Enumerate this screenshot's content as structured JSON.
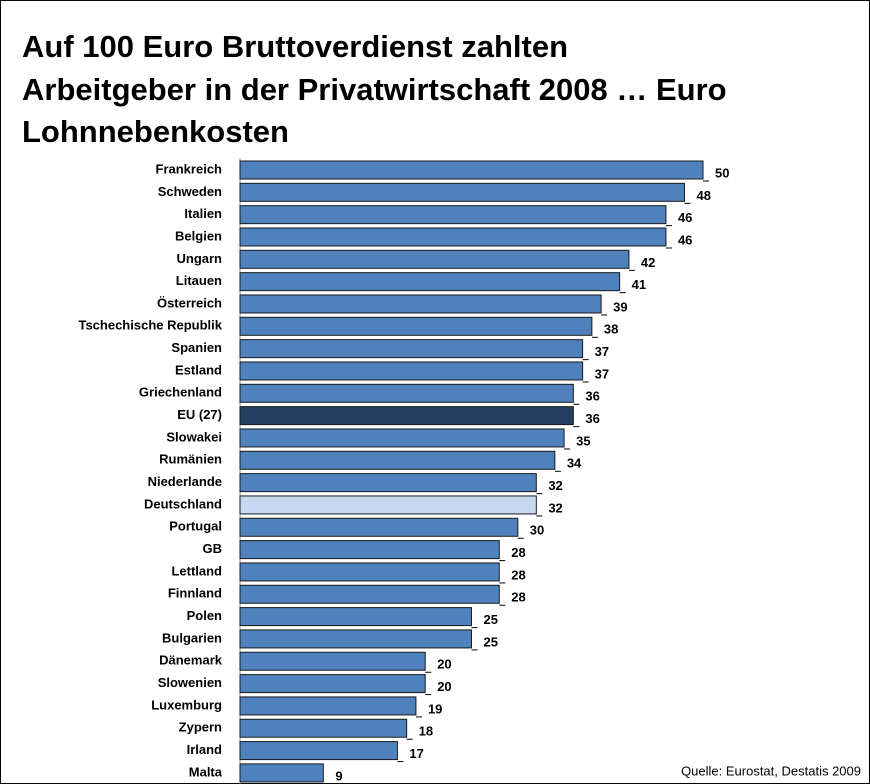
{
  "chart_data": {
    "type": "hbar",
    "title": [
      "Auf 100 Euro Bruttoverdienst zahlten",
      "Arbeitgeber in der Privatwirtschaft 2008 … Euro",
      "Lohnnebenkosten"
    ],
    "categories": [
      "Frankreich",
      "Schweden",
      "Italien",
      "Belgien",
      "Ungarn",
      "Litauen",
      "Österreich",
      "Tschechische Republik",
      "Spanien",
      "Estland",
      "Griechenland",
      "EU (27)",
      "Slowakei",
      "Rumänien",
      "Niederlande",
      "Deutschland",
      "Portugal",
      "GB",
      "Lettland",
      "Finnland",
      "Polen",
      "Bulgarien",
      "Dänemark",
      "Slowenien",
      "Luxemburg",
      "Zypern",
      "Irland",
      "Malta"
    ],
    "values": [
      50,
      48,
      46,
      46,
      42,
      41,
      39,
      38,
      37,
      37,
      36,
      36,
      35,
      34,
      32,
      32,
      30,
      28,
      28,
      28,
      25,
      25,
      20,
      20,
      19,
      18,
      17,
      9
    ],
    "colors": [
      "#4f81bd",
      "#4f81bd",
      "#4f81bd",
      "#4f81bd",
      "#4f81bd",
      "#4f81bd",
      "#4f81bd",
      "#4f81bd",
      "#4f81bd",
      "#4f81bd",
      "#4f81bd",
      "#243f60",
      "#4f81bd",
      "#4f81bd",
      "#4f81bd",
      "#c6d9f1",
      "#4f81bd",
      "#4f81bd",
      "#4f81bd",
      "#4f81bd",
      "#4f81bd",
      "#4f81bd",
      "#4f81bd",
      "#4f81bd",
      "#4f81bd",
      "#4f81bd",
      "#4f81bd",
      "#4f81bd"
    ],
    "xlim": [
      0,
      50
    ],
    "source": "Quelle: Eurostat, Destatis 2009"
  }
}
